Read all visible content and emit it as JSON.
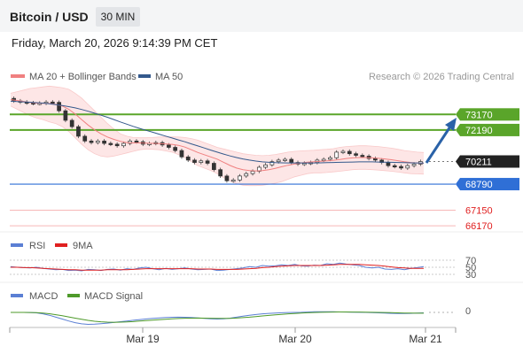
{
  "header": {
    "title": "Bitcoin / USD",
    "timeframe": "30 MIN"
  },
  "timestamp": "Friday, March 20, 2026 9:14:39 PM CET",
  "legend": {
    "ma20_bb": "MA 20 + Bollinger Bands",
    "ma50": "MA 50",
    "credit": "Research © 2026 Trading Central",
    "colors": {
      "ma20": "#f08080",
      "ma50": "#34598c",
      "bands": "#fde3e3",
      "support": "#2f6fd6",
      "resistance": "#5aa52a",
      "lower": "#f7b7b7",
      "arrow": "#2a62a8"
    }
  },
  "chart_data": [
    {
      "type": "line",
      "panel": "price",
      "x_ticks": [
        "Mar 19",
        "Mar 20",
        "Mar 21"
      ],
      "y_range": [
        65900,
        74800
      ],
      "last_price": "70211",
      "levels": [
        {
          "label": "73170",
          "value": 73170,
          "kind": "resistance"
        },
        {
          "label": "72190",
          "value": 72190,
          "kind": "resistance"
        },
        {
          "label": "70211",
          "value": 70211,
          "kind": "last"
        },
        {
          "label": "68790",
          "value": 68790,
          "kind": "support"
        },
        {
          "label": "67150",
          "value": 67150,
          "kind": "lower"
        },
        {
          "label": "66170",
          "value": 66170,
          "kind": "lower"
        }
      ],
      "price_series": [
        74180,
        74020,
        73950,
        73900,
        73860,
        73880,
        73950,
        73930,
        73400,
        72800,
        72400,
        71800,
        71500,
        71400,
        71500,
        71350,
        71300,
        71200,
        71350,
        71500,
        71450,
        71300,
        71350,
        71400,
        71250,
        71100,
        70900,
        70500,
        70300,
        70150,
        70250,
        70100,
        69700,
        69300,
        69000,
        69050,
        69300,
        69450,
        69600,
        69850,
        70000,
        70200,
        70300,
        70350,
        70150,
        70050,
        70100,
        70150,
        70300,
        70350,
        70450,
        70800,
        70850,
        70700,
        70600,
        70550,
        70400,
        70300,
        70150,
        69950,
        69900,
        69800,
        69950,
        70050,
        70211
      ],
      "ma20": [
        74100,
        74050,
        73990,
        73920,
        73880,
        73870,
        73860,
        73800,
        73700,
        73500,
        73200,
        72850,
        72500,
        72200,
        71950,
        71750,
        71600,
        71480,
        71400,
        71380,
        71380,
        71370,
        71350,
        71340,
        71320,
        71290,
        71230,
        71120,
        70950,
        70780,
        70640,
        70500,
        70360,
        70160,
        69960,
        69800,
        69700,
        69640,
        69620,
        69640,
        69700,
        69780,
        69880,
        69980,
        70060,
        70120,
        70170,
        70200,
        70220,
        70250,
        70290,
        70340,
        70400,
        70440,
        70460,
        70460,
        70440,
        70410,
        70370,
        70320,
        70260,
        70200,
        70150,
        70120,
        70100
      ],
      "bb_upper": [
        74500,
        74600,
        74700,
        74800,
        74850,
        74900,
        74950,
        74900,
        74850,
        74750,
        74500,
        74200,
        73800,
        73400,
        73000,
        72600,
        72250,
        71950,
        71800,
        71720,
        71700,
        71700,
        71720,
        71750,
        71760,
        71760,
        71750,
        71720,
        71650,
        71550,
        71400,
        71250,
        71100,
        71000,
        70900,
        70800,
        70700,
        70650,
        70600,
        70580,
        70600,
        70650,
        70720,
        70800,
        70850,
        70880,
        70900,
        70920,
        70950,
        70980,
        71020,
        71100,
        71150,
        71180,
        71200,
        71200,
        71180,
        71150,
        71100,
        71050,
        70980,
        70900,
        70850,
        70800,
        70780
      ],
      "bb_lower": [
        73700,
        73500,
        73300,
        73100,
        72950,
        72850,
        72700,
        72600,
        72400,
        72100,
        71700,
        71300,
        70950,
        70700,
        70550,
        70500,
        70550,
        70650,
        70750,
        70850,
        70950,
        71000,
        70980,
        70950,
        70880,
        70800,
        70650,
        70450,
        70200,
        69950,
        69800,
        69650,
        69450,
        69200,
        68980,
        68820,
        68720,
        68700,
        68700,
        68720,
        68780,
        68850,
        68950,
        69100,
        69250,
        69350,
        69450,
        69500,
        69500,
        69520,
        69560,
        69600,
        69650,
        69700,
        69720,
        69720,
        69700,
        69670,
        69640,
        69600,
        69550,
        69500,
        69450,
        69430,
        69420
      ],
      "ma50": [
        74000,
        73980,
        73960,
        73940,
        73910,
        73880,
        73840,
        73790,
        73730,
        73660,
        73580,
        73480,
        73370,
        73250,
        73120,
        72990,
        72850,
        72700,
        72560,
        72420,
        72290,
        72170,
        72050,
        71930,
        71810,
        71690,
        71570,
        71450,
        71320,
        71190,
        71060,
        70930,
        70800,
        70680,
        70560,
        70460,
        70370,
        70300,
        70240,
        70190,
        70160,
        70140,
        70130,
        70120,
        70120,
        70120,
        70120,
        70120,
        70130,
        70140,
        70150,
        70160,
        70170,
        70180,
        70190,
        70190,
        70190,
        70180,
        70170,
        70160,
        70150,
        70140,
        70130,
        70120,
        70110
      ]
    },
    {
      "type": "line",
      "panel": "rsi",
      "series_names": [
        "RSI",
        "9MA"
      ],
      "levels": [
        "70",
        "50",
        "30"
      ],
      "rsi": [
        52,
        50,
        49,
        48,
        50,
        47,
        45,
        43,
        44,
        41,
        42,
        40,
        44,
        43,
        41,
        44,
        45,
        42,
        46,
        44,
        48,
        50,
        46,
        43,
        47,
        44,
        46,
        48,
        45,
        43,
        44,
        45,
        41,
        42,
        44,
        46,
        48,
        52,
        50,
        55,
        53,
        54,
        57,
        55,
        58,
        54,
        53,
        56,
        55,
        60,
        58,
        62,
        59,
        57,
        55,
        50,
        48,
        50,
        45,
        44,
        46,
        43,
        47,
        49,
        52
      ],
      "ma9": [
        50,
        50,
        49,
        49,
        48,
        47,
        46,
        45,
        44,
        43,
        43,
        42,
        42,
        42,
        42,
        43,
        43,
        43,
        43,
        44,
        45,
        46,
        46,
        46,
        46,
        46,
        46,
        46,
        46,
        45,
        45,
        45,
        44,
        44,
        44,
        44,
        45,
        46,
        47,
        49,
        50,
        52,
        53,
        54,
        55,
        55,
        55,
        55,
        55,
        56,
        57,
        58,
        58,
        58,
        58,
        57,
        56,
        55,
        53,
        51,
        49,
        48,
        47,
        47,
        47
      ]
    },
    {
      "type": "line",
      "panel": "macd",
      "series_names": [
        "MACD",
        "MACD Signal"
      ],
      "zero_label": "0",
      "macd": [
        0,
        0,
        0,
        -5,
        -20,
        -60,
        -120,
        -200,
        -280,
        -360,
        -430,
        -480,
        -500,
        -490,
        -470,
        -450,
        -420,
        -390,
        -360,
        -330,
        -300,
        -275,
        -250,
        -230,
        -215,
        -205,
        -200,
        -205,
        -215,
        -230,
        -250,
        -270,
        -280,
        -270,
        -240,
        -200,
        -160,
        -120,
        -90,
        -60,
        -40,
        -25,
        -15,
        -5,
        0,
        5,
        15,
        25,
        30,
        28,
        25,
        20,
        15,
        10,
        5,
        0,
        -10,
        -20,
        -30,
        -40,
        -45,
        -45,
        -40,
        -30,
        -20
      ],
      "signal": [
        0,
        0,
        0,
        -2,
        -8,
        -25,
        -55,
        -95,
        -140,
        -190,
        -240,
        -290,
        -335,
        -370,
        -395,
        -410,
        -415,
        -410,
        -400,
        -385,
        -365,
        -345,
        -325,
        -305,
        -285,
        -270,
        -255,
        -245,
        -240,
        -238,
        -240,
        -245,
        -250,
        -252,
        -248,
        -238,
        -220,
        -200,
        -175,
        -150,
        -125,
        -100,
        -80,
        -60,
        -45,
        -30,
        -15,
        -5,
        5,
        12,
        16,
        18,
        18,
        16,
        14,
        10,
        5,
        0,
        -5,
        -10,
        -18,
        -25,
        -30,
        -32,
        -32
      ]
    }
  ]
}
